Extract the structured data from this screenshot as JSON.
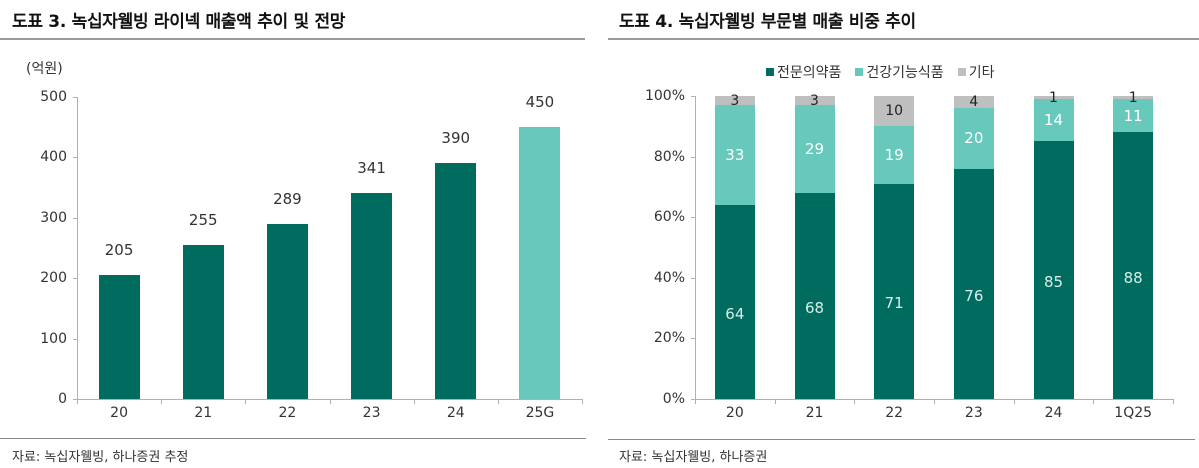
{
  "left": {
    "title": "도표 3. 녹십자웰빙 라이넥 매출액 추이 및 전망",
    "unit": "(억원)",
    "source": "자료: 녹십자웰빙, 하나증권 추정"
  },
  "right": {
    "title": "도표 4. 녹십자웰빙 부문별 매출 비중 추이",
    "source": "자료: 녹십자웰빙, 하나증권",
    "legend": [
      {
        "label": "전문의약품",
        "color": "#006B5F"
      },
      {
        "label": "건강기능식품",
        "color": "#66C9BB"
      },
      {
        "label": "기타",
        "color": "#BFBFBF"
      }
    ]
  },
  "colors": {
    "dark_teal": "#006B5F",
    "light_teal": "#66C9BB",
    "gray": "#BFBFBF",
    "rule": "#9A9A9A"
  },
  "chart_data": [
    {
      "type": "bar",
      "title": "도표 3. 녹십자웰빙 라이넥 매출액 추이 및 전망",
      "xlabel": "",
      "ylabel": "(억원)",
      "categories": [
        "20",
        "21",
        "22",
        "23",
        "24",
        "25G"
      ],
      "values": [
        205,
        255,
        289,
        341,
        390,
        450
      ],
      "bar_colors": [
        "#006B5F",
        "#006B5F",
        "#006B5F",
        "#006B5F",
        "#006B5F",
        "#66C9BB"
      ],
      "ylim": [
        0,
        500
      ],
      "yticks": [
        0,
        100,
        200,
        300,
        400,
        500
      ],
      "grid": false,
      "data_labels": true
    },
    {
      "type": "bar",
      "stacked": true,
      "percent": true,
      "title": "도표 4. 녹십자웰빙 부문별 매출 비중 추이",
      "xlabel": "",
      "ylabel": "",
      "categories": [
        "20",
        "21",
        "22",
        "23",
        "24",
        "1Q25"
      ],
      "series": [
        {
          "name": "전문의약품",
          "color": "#006B5F",
          "values": [
            64,
            68,
            71,
            76,
            85,
            88
          ]
        },
        {
          "name": "건강기능식품",
          "color": "#66C9BB",
          "values": [
            33,
            29,
            19,
            20,
            14,
            11
          ]
        },
        {
          "name": "기타",
          "color": "#BFBFBF",
          "values": [
            3,
            3,
            10,
            4,
            1,
            1
          ]
        }
      ],
      "ylim": [
        0,
        100
      ],
      "yticks": [
        "0%",
        "20%",
        "40%",
        "60%",
        "80%",
        "100%"
      ],
      "legend_position": "top",
      "grid": false,
      "data_labels": true
    }
  ]
}
